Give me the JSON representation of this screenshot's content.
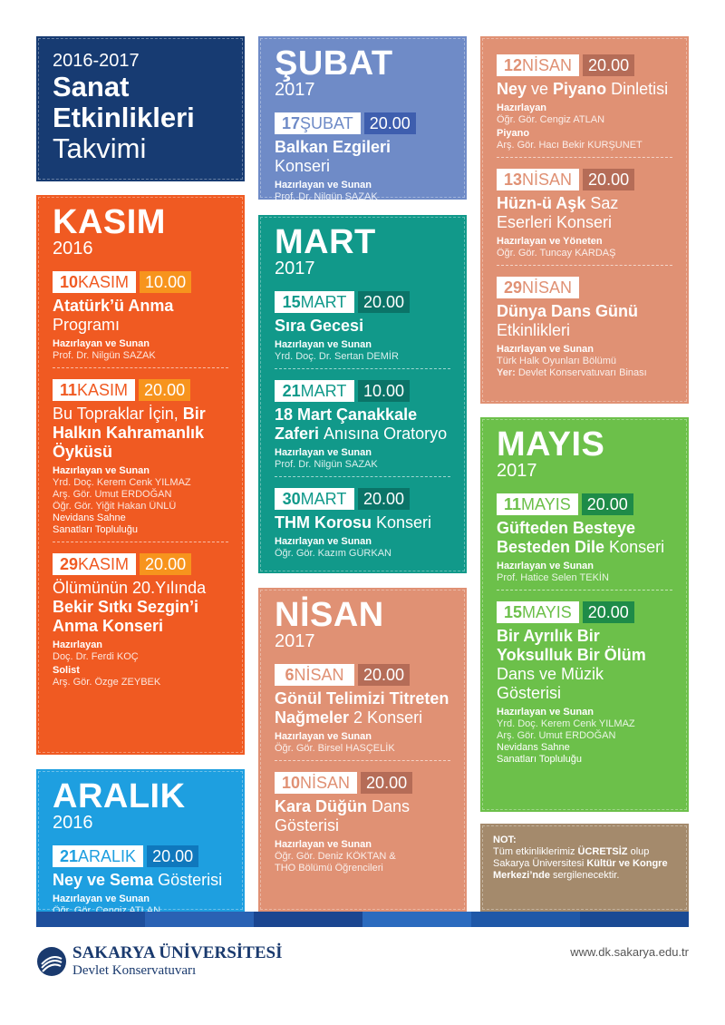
{
  "header": {
    "line1": "2016-2017",
    "line2": "Sanat",
    "line3": "Etkinlikleri",
    "line4": "Takvimi"
  },
  "panels": [
    {
      "id": "kasim",
      "month": "KASIM",
      "year": "2016",
      "bg": "#f05a22",
      "timebg": "#f7941d",
      "daycolor": "#f05a22",
      "left": 40,
      "top": 215,
      "w": 230,
      "h": 617,
      "events": [
        {
          "day": "10",
          "mon": "KASIM",
          "time": "10.00",
          "title": [
            {
              "t": "Atatürk’ü Anma ",
              "b": true
            },
            {
              "t": "Programı",
              "b": false
            }
          ],
          "credits": [
            {
              "role": "Hazırlayan ve Sunan",
              "names": [
                "Prof. Dr. Nilgün SAZAK"
              ]
            }
          ]
        },
        {
          "day": "11",
          "mon": "KASIM",
          "time": "20.00",
          "title": [
            {
              "t": "Bu Topraklar İçin, ",
              "b": false
            },
            {
              "t": "Bir Halkın Kahramanlık Öyküsü",
              "b": true
            }
          ],
          "credits": [
            {
              "role": "Hazırlayan ve Sunan",
              "names": [
                "Yrd. Doç. Kerem Cenk YILMAZ",
                "Arş. Gör. Umut ERDOĞAN",
                "Öğr. Gör. Yiğit Hakan ÜNLÜ"
              ],
              "group": [
                "Nevidans Sahne",
                "Sanatları Topluluğu"
              ]
            }
          ]
        },
        {
          "day": "29",
          "mon": "KASIM",
          "time": "20.00",
          "title": [
            {
              "t": "Ölümünün 20.Yılında ",
              "b": false
            },
            {
              "t": "Bekir Sıtkı Sezgin’i Anma Konseri",
              "b": true
            }
          ],
          "credits": [
            {
              "role": "Hazırlayan",
              "names": [
                "Doç. Dr. Ferdi KOÇ"
              ]
            },
            {
              "role": "Solist",
              "names": [
                "Arş. Gör. Özge ZEYBEK"
              ]
            }
          ]
        }
      ]
    },
    {
      "id": "aralik",
      "month": "ARALIK",
      "year": "2016",
      "bg": "#1e9fe0",
      "timebg": "#0f78bd",
      "daycolor": "#1e9fe0",
      "events": [
        {
          "day": "21",
          "mon": "ARALIK",
          "time": "20.00",
          "title": [
            {
              "t": "Ney ve Sema ",
              "b": true
            },
            {
              "t": "Gösterisi",
              "b": false
            }
          ],
          "credits": [
            {
              "role": "Hazırlayan ve Sunan",
              "names": [
                "Öğr. Gör. Cengiz ATLAN"
              ]
            }
          ]
        }
      ]
    },
    {
      "id": "subat",
      "month": "ŞUBAT",
      "year": "2017",
      "bg": "#6f8bc7",
      "timebg": "#3e5eae",
      "daycolor": "#6f8bc7",
      "events": [
        {
          "day": "17",
          "mon": "ŞUBAT",
          "time": "20.00",
          "title": [
            {
              "t": "Balkan Ezgileri ",
              "b": true
            },
            {
              "t": "Konseri",
              "b": false
            }
          ],
          "credits": [
            {
              "role": "Hazırlayan ve Sunan",
              "names": [
                "Prof. Dr. Nilgün SAZAK"
              ]
            }
          ]
        }
      ]
    },
    {
      "id": "mart",
      "month": "MART",
      "year": "2017",
      "bg": "#11998a",
      "timebg": "#0b7468",
      "daycolor": "#11998a",
      "events": [
        {
          "day": "15",
          "mon": "MART",
          "time": "20.00",
          "title": [
            {
              "t": "Sıra Gecesi",
              "b": true
            }
          ],
          "credits": [
            {
              "role": "Hazırlayan ve Sunan",
              "names": [
                "Yrd. Doç. Dr. Sertan DEMİR"
              ]
            }
          ]
        },
        {
          "day": "21",
          "mon": "MART",
          "time": "10.00",
          "title": [
            {
              "t": "18 Mart Çanakkale Zaferi ",
              "b": true
            },
            {
              "t": "Anısına Oratoryo",
              "b": false
            }
          ],
          "credits": [
            {
              "role": "Hazırlayan ve Sunan",
              "names": [
                "Prof. Dr. Nilgün SAZAK"
              ]
            }
          ]
        },
        {
          "day": "30",
          "mon": "MART",
          "time": "20.00",
          "title": [
            {
              "t": "THM Korosu ",
              "b": true
            },
            {
              "t": "Konseri",
              "b": false
            }
          ],
          "credits": [
            {
              "role": "Hazırlayan ve Sunan",
              "names": [
                "Öğr. Gör. Kazım GÜRKAN"
              ]
            }
          ]
        }
      ]
    },
    {
      "id": "nisan",
      "month": "NİSAN",
      "year": "2017",
      "bg": "#e09174",
      "timebg": "#b56c57",
      "daycolor": "#e09174",
      "events": [
        {
          "day": "6",
          "mon": "NİSAN",
          "time": "20.00",
          "title": [
            {
              "t": "Gönül Telimizi Titreten Nağmeler ",
              "b": true
            },
            {
              "t": "2 Konseri",
              "b": false
            }
          ],
          "credits": [
            {
              "role": "Hazırlayan ve Sunan",
              "names": [
                "Öğr. Gör. Birsel HASÇELİK"
              ]
            }
          ]
        },
        {
          "day": "10",
          "mon": "NİSAN",
          "time": "20.00",
          "title": [
            {
              "t": "Kara Düğün ",
              "b": true
            },
            {
              "t": "Dans Gösterisi",
              "b": false
            }
          ],
          "credits": [
            {
              "role": "Hazırlayan ve Sunan",
              "names": [
                "Öğr. Gör. Deniz KÖKTAN &",
                "THO Bölümü Öğrencileri"
              ]
            }
          ]
        }
      ]
    },
    {
      "id": "nisan2",
      "month": "",
      "year": "",
      "bg": "#e09174",
      "timebg": "#b56c57",
      "daycolor": "#e09174",
      "events": [
        {
          "day": "12",
          "mon": "NİSAN",
          "time": "20.00",
          "title": [
            {
              "t": "Ney ",
              "b": true
            },
            {
              "t": "ve ",
              "b": false
            },
            {
              "t": "Piyano ",
              "b": true
            },
            {
              "t": "Dinletisi",
              "b": false
            }
          ],
          "credits": [
            {
              "role": "Hazırlayan",
              "names": [
                "Öğr. Gör. Cengiz ATLAN"
              ]
            },
            {
              "role": "Piyano",
              "names": [
                "Arş. Gör. Hacı Bekir KURŞUNET"
              ]
            }
          ]
        },
        {
          "day": "13",
          "mon": "NİSAN",
          "time": "20.00",
          "title": [
            {
              "t": "Hüzn-ü Aşk ",
              "b": true
            },
            {
              "t": "Saz Eserleri Konseri",
              "b": false
            }
          ],
          "credits": [
            {
              "role": "Hazırlayan ve Yöneten",
              "names": [
                "Öğr. Gör. Tuncay KARDAŞ"
              ]
            }
          ]
        },
        {
          "day": "29",
          "mon": "NİSAN",
          "title": [
            {
              "t": "Dünya Dans Günü ",
              "b": true
            },
            {
              "t": "Etkinlikleri",
              "b": false
            }
          ],
          "credits": [
            {
              "role": "Hazırlayan ve Sunan",
              "names": [
                "Türk Halk Oyunları Bölümü"
              ]
            }
          ],
          "place": {
            "label": "Yer:",
            "value": "Devlet Konservatuvarı Binası"
          }
        }
      ]
    },
    {
      "id": "mayis",
      "month": "MAYIS",
      "year": "2017",
      "bg": "#6cc04a",
      "timebg": "#1e8b48",
      "daycolor": "#6cc04a",
      "events": [
        {
          "day": "11",
          "mon": "MAYIS",
          "time": "20.00",
          "title": [
            {
              "t": "Güfteden Besteye Besteden Dile ",
              "b": true
            },
            {
              "t": "Konseri",
              "b": false
            }
          ],
          "credits": [
            {
              "role": "Hazırlayan ve Sunan",
              "names": [
                "Prof. Hatice Selen TEKİN"
              ]
            }
          ]
        },
        {
          "day": "15",
          "mon": "MAYIS",
          "time": "20.00",
          "title": [
            {
              "t": "Bir Ayrılık Bir Yoksulluk Bir Ölüm ",
              "b": true
            },
            {
              "t": "Dans ve Müzik Gösterisi",
              "b": false
            }
          ],
          "credits": [
            {
              "role": "Hazırlayan ve Sunan",
              "names": [
                "Yrd. Doç. Kerem Cenk YILMAZ",
                "Arş. Gör. Umut ERDOĞAN"
              ],
              "group": [
                "Nevidans Sahne",
                "Sanatları Topluluğu"
              ]
            }
          ]
        }
      ]
    }
  ],
  "note": {
    "label": "NOT:",
    "p1": "Tüm etkinliklerimiz ",
    "p2": "ÜCRETSİZ",
    "p3": " olup Sakarya Üniversitesi ",
    "p4": "Kültür ve Kongre Merkezi’nde",
    "p5": " sergilenecektir."
  },
  "footer": {
    "university": "SAKARYA ÜNİVERSİTESİ",
    "department": "Devlet Konservatuvarı",
    "url": "www.dk.sakarya.edu.tr"
  },
  "colors": {
    "navy": "#173b72",
    "bar": [
      "#1e4f9c",
      "#2a62b4",
      "#1a4590",
      "#2b6bbf",
      "#1f58a8",
      "#1a4a94"
    ]
  }
}
